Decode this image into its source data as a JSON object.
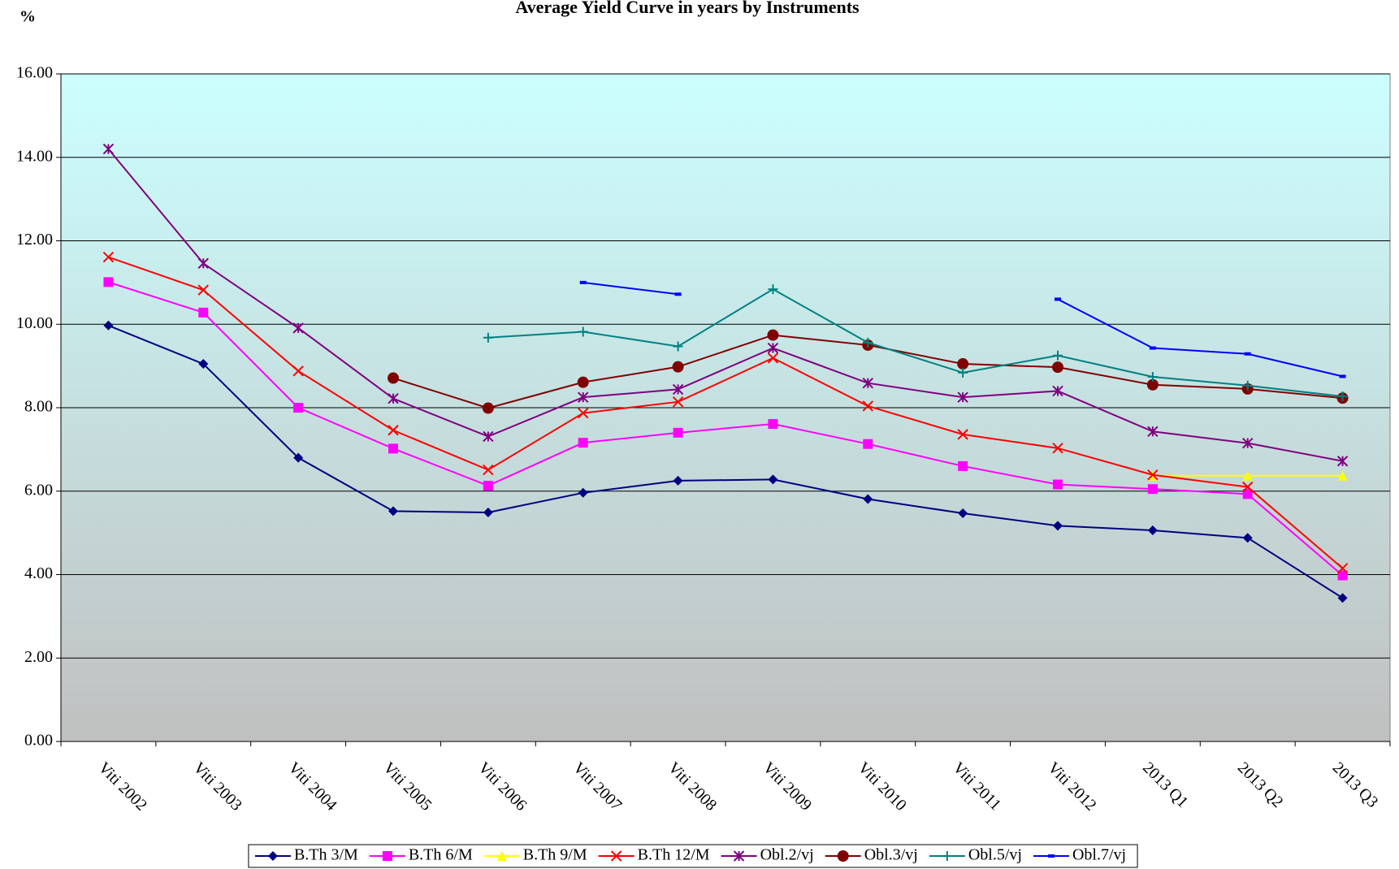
{
  "chart_data": {
    "type": "line",
    "title": "Average Yield Curve in years by Instruments",
    "y_label": "%",
    "categories": [
      "Viti 2002",
      "Viti 2003",
      "Viti 2004",
      "Viti 2005",
      "Viti 2006",
      "Viti 2007",
      "Viti 2008",
      "Viti 2009",
      "Viti 2010",
      "Viti 2011",
      "Viti 2012",
      "2013 Q1",
      "2013 Q2",
      "2013 Q3"
    ],
    "ylim": [
      0,
      16
    ],
    "yticks": [
      {
        "value": 0,
        "label": "0.00"
      },
      {
        "value": 2,
        "label": "2.00"
      },
      {
        "value": 4,
        "label": "4.00"
      },
      {
        "value": 6,
        "label": "6.00"
      },
      {
        "value": 8,
        "label": "8.00"
      },
      {
        "value": 10,
        "label": "10.00"
      },
      {
        "value": 12,
        "label": "12.00"
      },
      {
        "value": 14,
        "label": "14.00"
      },
      {
        "value": 16,
        "label": "16.00"
      }
    ],
    "grid": true,
    "legend": "bottom",
    "series": [
      {
        "name": "B.Th 3/M",
        "color": "#000080",
        "marker": "diamond",
        "values": [
          9.97,
          9.05,
          6.8,
          5.52,
          5.49,
          5.96,
          6.25,
          6.28,
          5.81,
          5.47,
          5.17,
          5.06,
          4.88,
          3.44
        ]
      },
      {
        "name": "B.Th 6/M",
        "color": "#ff00ff",
        "marker": "square",
        "values": [
          11.01,
          10.28,
          8.0,
          7.02,
          6.13,
          7.16,
          7.4,
          7.61,
          7.13,
          6.6,
          6.16,
          6.05,
          5.93,
          3.98
        ]
      },
      {
        "name": "B.Th 9/M",
        "color": "#ffff00",
        "marker": "triangle",
        "values": [
          null,
          null,
          null,
          null,
          null,
          null,
          null,
          null,
          null,
          null,
          null,
          6.37,
          6.37,
          6.37
        ]
      },
      {
        "name": "B.Th 12/M",
        "color": "#ff0000",
        "marker": "x",
        "values": [
          11.61,
          10.82,
          8.88,
          7.46,
          6.51,
          7.87,
          8.14,
          9.19,
          8.04,
          7.36,
          7.03,
          6.39,
          6.1,
          4.15
        ]
      },
      {
        "name": "Obl.2/vj",
        "color": "#800080",
        "marker": "star",
        "values": [
          14.2,
          11.46,
          9.91,
          8.22,
          7.31,
          8.25,
          8.44,
          9.43,
          8.59,
          8.25,
          8.4,
          7.43,
          7.15,
          6.72
        ]
      },
      {
        "name": "Obl.3/vj",
        "color": "#800000",
        "marker": "circle",
        "values": [
          null,
          null,
          null,
          8.71,
          7.99,
          8.61,
          8.98,
          9.74,
          9.5,
          9.05,
          8.97,
          8.55,
          8.45,
          8.23
        ]
      },
      {
        "name": "Obl.5/vj",
        "color": "#008080",
        "marker": "plus",
        "values": [
          null,
          null,
          null,
          null,
          9.68,
          9.82,
          9.47,
          10.84,
          9.56,
          8.84,
          9.25,
          8.74,
          8.53,
          8.27
        ]
      },
      {
        "name": "Obl.7/vj",
        "color": "#0000ff",
        "marker": "dash",
        "values": [
          null,
          null,
          null,
          null,
          null,
          11.0,
          10.72,
          null,
          null,
          null,
          10.6,
          9.43,
          9.29,
          8.75
        ]
      }
    ]
  }
}
